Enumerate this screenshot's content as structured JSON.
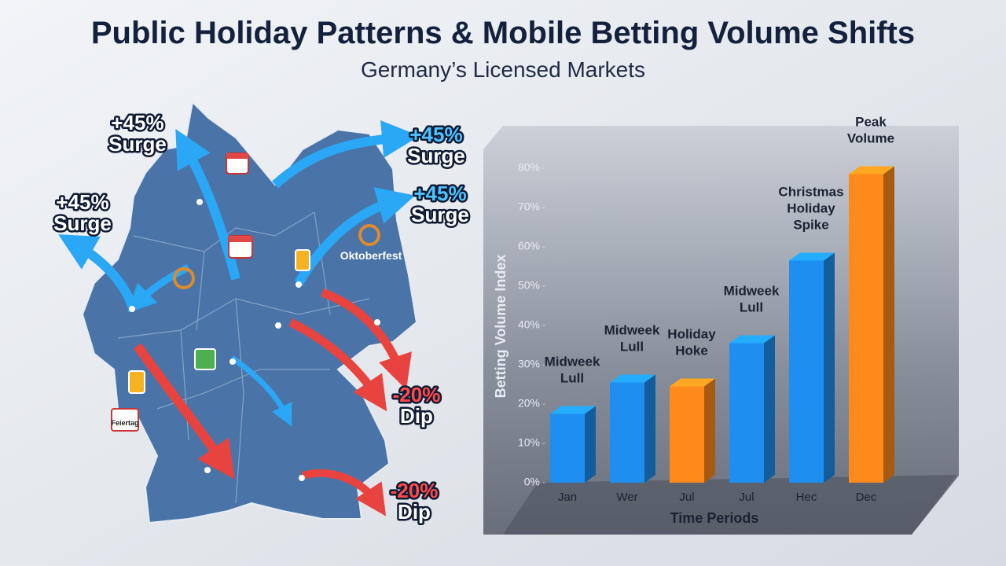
{
  "header": {
    "title": "Public Holiday Patterns & Mobile Betting Volume Shifts",
    "subtitle": "Germany’s Licensed Markets"
  },
  "map": {
    "callouts": [
      {
        "value": "+45%",
        "label": "Surge"
      },
      {
        "value": "+45%",
        "label": "Surge"
      },
      {
        "value": "+45%",
        "label": "Surge"
      },
      {
        "value": "+45%",
        "label": "Surge"
      },
      {
        "value": "-20%",
        "label": "Dip"
      },
      {
        "value": "-20%",
        "label": "Dip"
      }
    ],
    "event": "Oktoberfest",
    "calendar": "Feiertag"
  },
  "chart_data": {
    "type": "bar",
    "categories": [
      "Jan",
      "Wer",
      "Jul",
      "Jul",
      "Hec",
      "Dec"
    ],
    "values": [
      17.5,
      25.5,
      24.5,
      35.5,
      56.5,
      78.5
    ],
    "colors": [
      "#1e8ff0",
      "#1e8ff0",
      "#ff8a1c",
      "#1e8ff0",
      "#1e8ff0",
      "#ff8a1c"
    ],
    "annotations": [
      [
        "Midweek",
        "Lull"
      ],
      [
        "Midweek",
        "Lull"
      ],
      [
        "Holiday",
        "Hoke"
      ],
      [
        "Midweek",
        "Lull"
      ],
      [
        "Christmas",
        "Holiday",
        "Spike"
      ],
      [
        "Peak",
        "Volume"
      ]
    ],
    "x_label": "Time Periods",
    "y_label": "Betting Volume Index",
    "ylim": [
      0,
      80
    ],
    "yticks": [
      {
        "value": 0,
        "label": "0%"
      },
      {
        "value": 10,
        "label": "10%"
      },
      {
        "value": 20,
        "label": "20%"
      },
      {
        "value": 30,
        "label": "30%"
      },
      {
        "value": 40,
        "label": "40%"
      },
      {
        "value": 50,
        "label": "50%"
      },
      {
        "value": 60,
        "label": "60%"
      },
      {
        "value": 70,
        "label": "70%"
      },
      {
        "value": 80,
        "label": "80%"
      }
    ]
  }
}
